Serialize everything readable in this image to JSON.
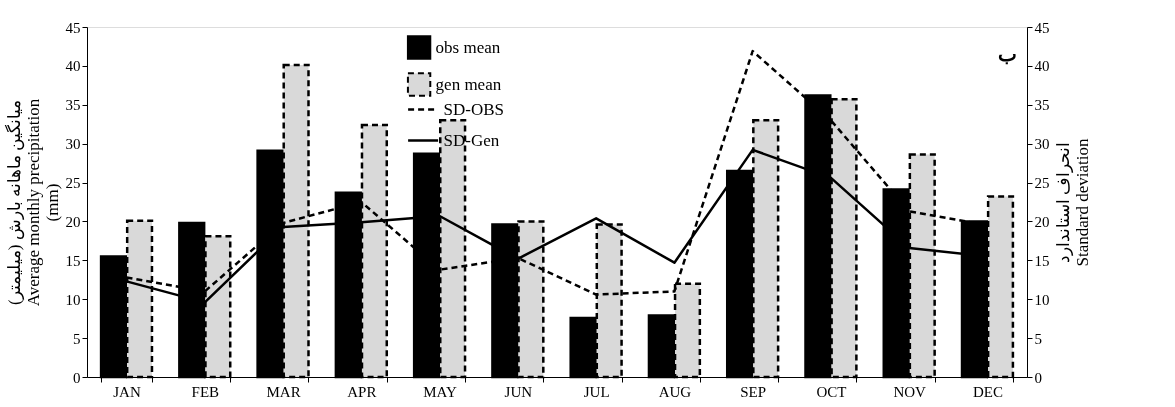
{
  "chart_data": {
    "type": "bar",
    "ylabel": "میانگین ماهانه بارش (میلیمتر)\nAverage monthly precipitation\n(mm)",
    "y2label": "انحراف استاندارد\nStandard deviation",
    "annotations": [
      "ب"
    ],
    "categories": [
      "JAN",
      "FEB",
      "MAR",
      "APR",
      "MAY",
      "JUN",
      "JUL",
      "AUG",
      "SEP",
      "OCT",
      "NOV",
      "DEC"
    ],
    "series": [
      {
        "name": "obs mean",
        "color": "#000000",
        "values": [
          15.5,
          19.8,
          29.1,
          23.7,
          28.7,
          19.6,
          7.6,
          7.9,
          26.5,
          36.2,
          24.1,
          20.0
        ]
      },
      {
        "name": "gen mean",
        "color": "#d9d9d9",
        "line_style": "dashed",
        "values": [
          20.1,
          18.1,
          40.1,
          32.4,
          33.0,
          20.0,
          19.6,
          12.0,
          33.0,
          35.7,
          28.6,
          23.2
        ]
      },
      {
        "name": "SD-OBS",
        "type": "line",
        "axis": "y2",
        "color": "#000000",
        "line_style": "dashed",
        "values": [
          12.8,
          11.0,
          19.8,
          22.5,
          13.8,
          15.3,
          10.6,
          11.0,
          41.9,
          33.0,
          21.3,
          19.5
        ]
      },
      {
        "name": "SD-Gen",
        "type": "line",
        "axis": "y2",
        "color": "#000000",
        "line_style": "solid",
        "values": [
          12.3,
          9.6,
          19.3,
          19.9,
          20.7,
          15.2,
          20.4,
          14.7,
          29.2,
          25.6,
          16.6,
          15.5
        ]
      }
    ],
    "ylim": [
      0,
      45
    ],
    "yticks": [
      0,
      5,
      10,
      15,
      20,
      25,
      30,
      35,
      40,
      45
    ],
    "y2lim": [
      0,
      45
    ],
    "y2ticks": [
      0,
      5,
      10,
      15,
      20,
      25,
      30,
      35,
      40,
      45
    ],
    "grid": false,
    "legend": "top",
    "marker": "none"
  }
}
